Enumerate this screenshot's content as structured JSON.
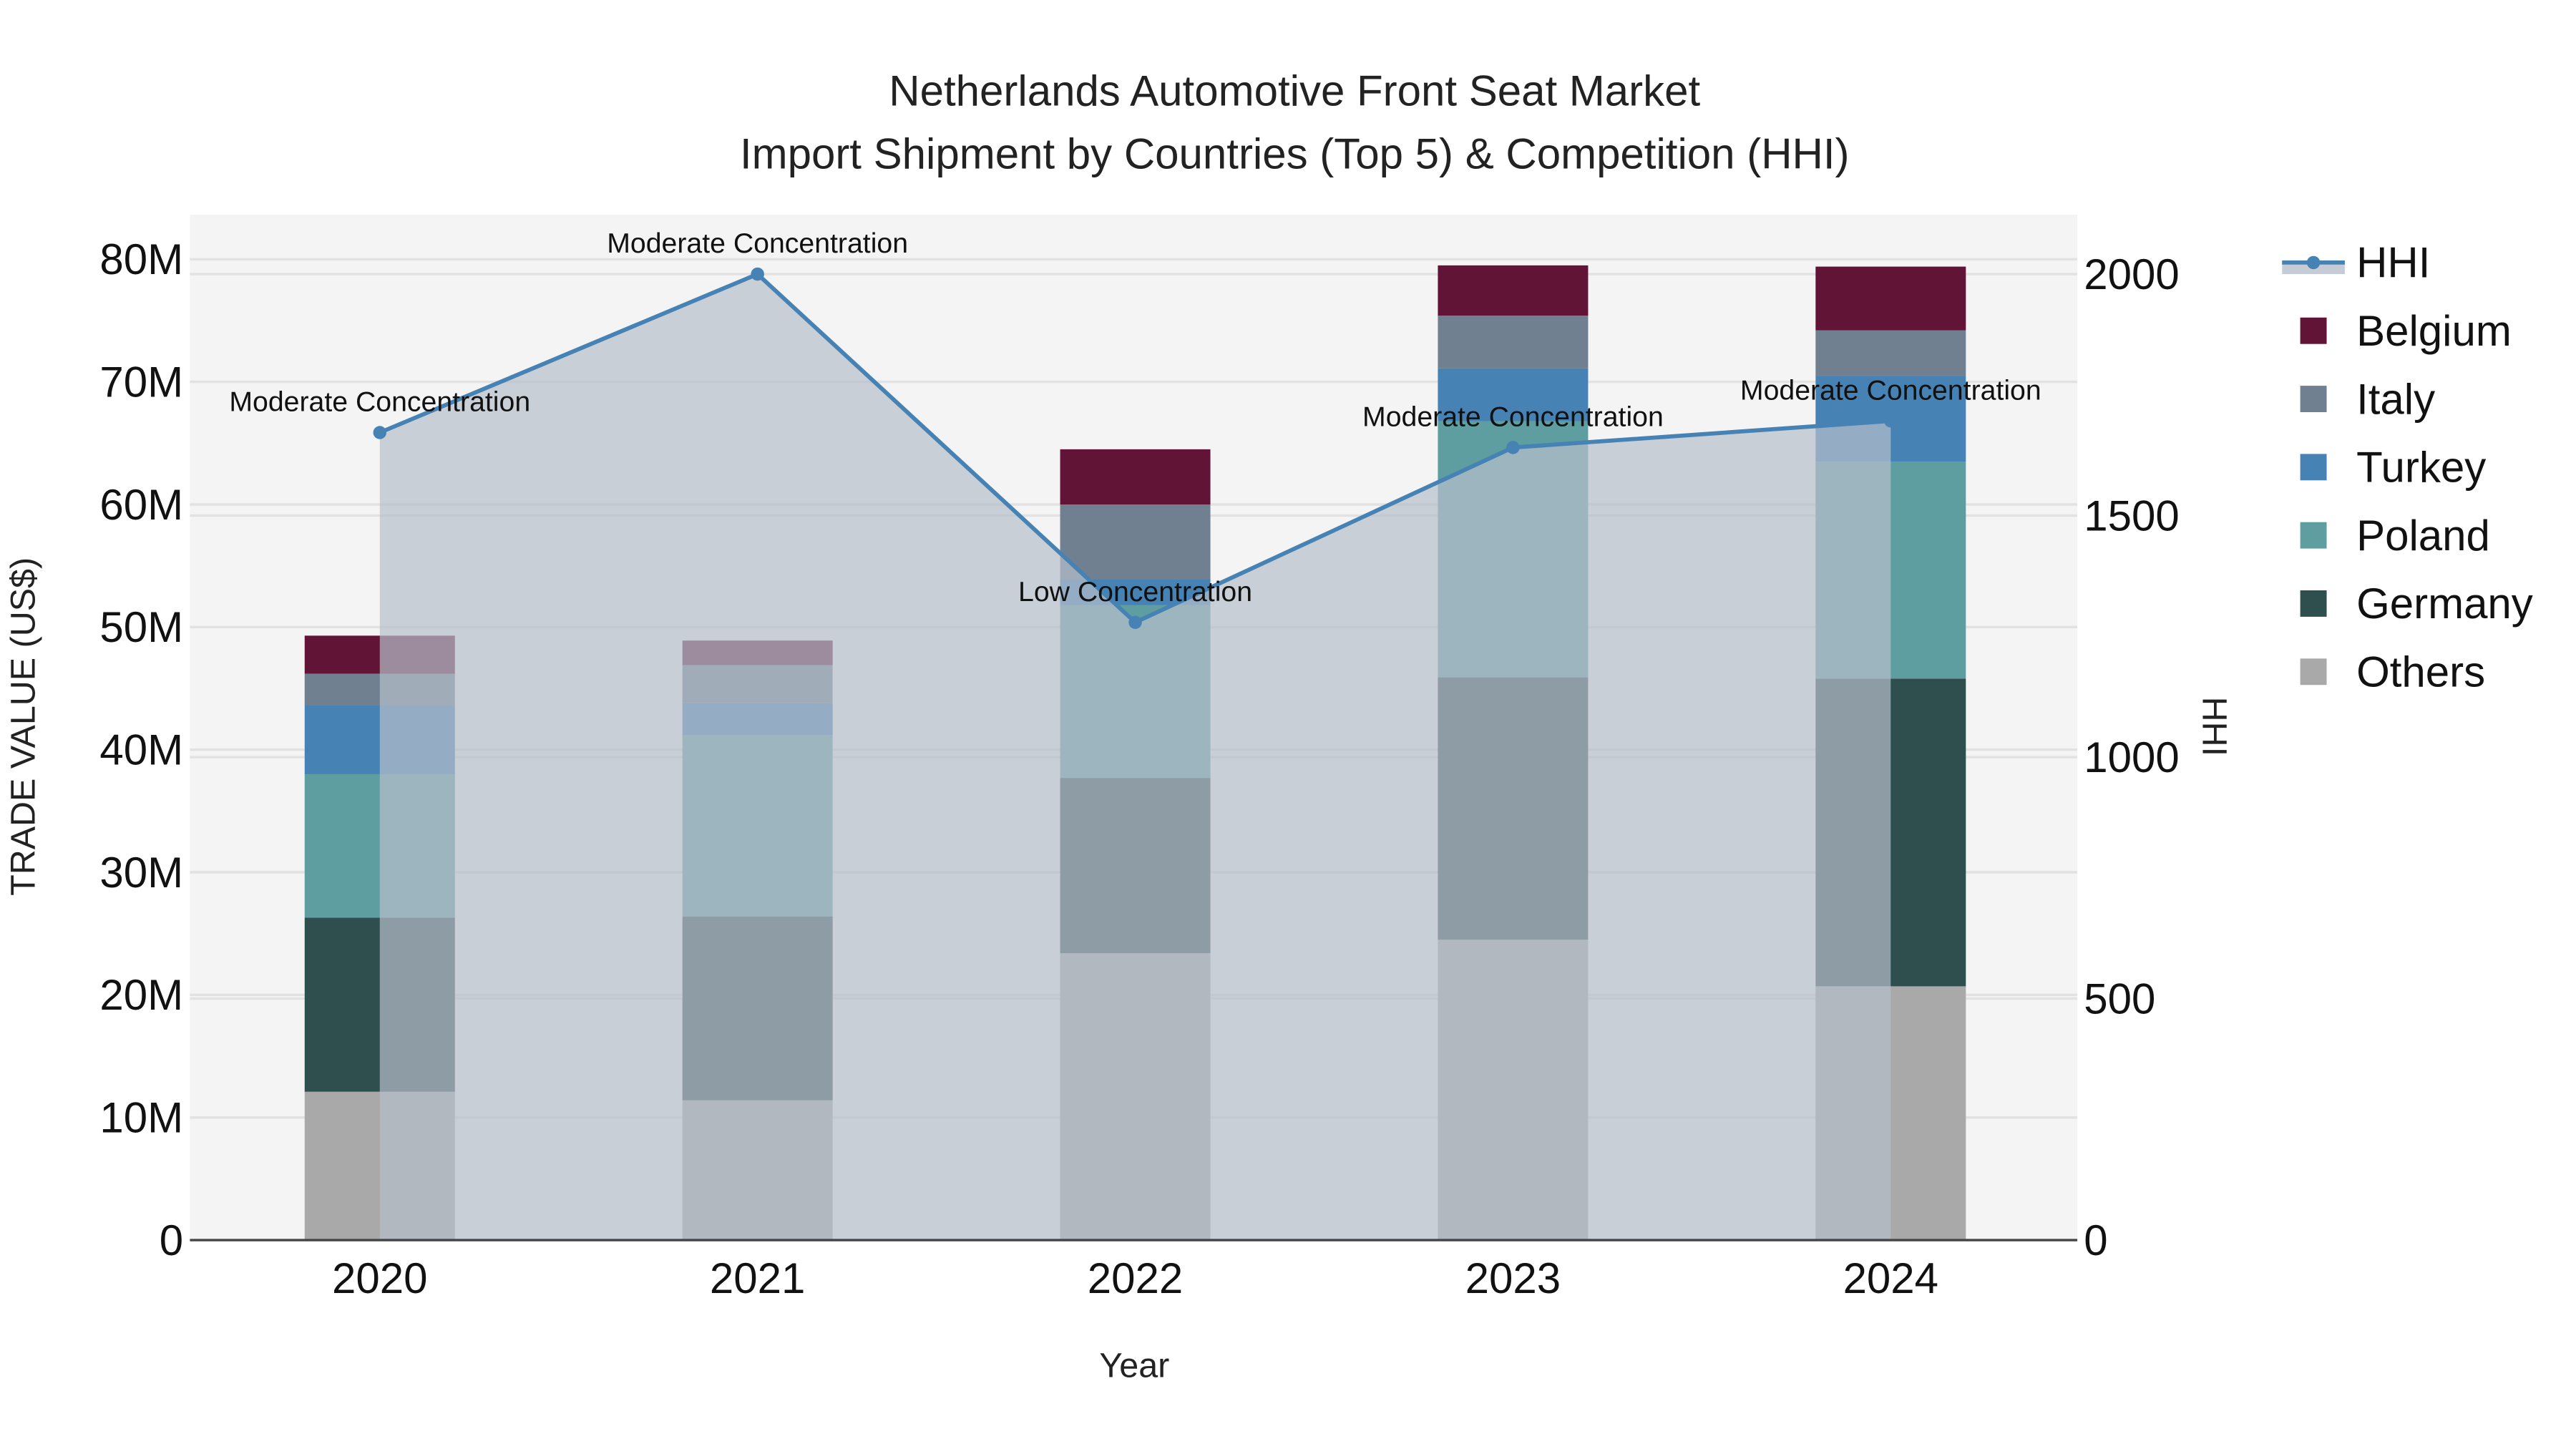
{
  "chart_data": {
    "type": "bar",
    "title_line1": "Netherlands Automotive Front Seat Market",
    "title_line2": "Import Shipment by Countries (Top 5) & Competition (HHI)",
    "xlabel": "Year",
    "ylabel": "TRADE VALUE (US$)",
    "y2label": "HHI",
    "categories": [
      "2020",
      "2021",
      "2022",
      "2023",
      "2024"
    ],
    "ylim": [
      0,
      84
    ],
    "y_unit": "M",
    "yticks": [
      0,
      10,
      20,
      30,
      40,
      50,
      60,
      70,
      80
    ],
    "ytick_labels": [
      "0",
      "10M",
      "20M",
      "30M",
      "40M",
      "50M",
      "60M",
      "70M",
      "80M"
    ],
    "y2lim": [
      0,
      2100
    ],
    "y2ticks": [
      0,
      500,
      1000,
      1500,
      2000
    ],
    "y2tick_labels": [
      "0",
      "500",
      "1000",
      "1500",
      "2000"
    ],
    "stack_order": [
      "Others",
      "Germany",
      "Poland",
      "Turkey",
      "Italy",
      "Belgium"
    ],
    "series": [
      {
        "name": "Others",
        "color": "#a9a9a9",
        "values": [
          12.1,
          11.4,
          23.4,
          24.5,
          20.7
        ]
      },
      {
        "name": "Germany",
        "color": "#2f4f4f",
        "values": [
          14.2,
          15.0,
          14.3,
          21.4,
          25.1
        ]
      },
      {
        "name": "Poland",
        "color": "#5f9ea0",
        "values": [
          11.7,
          14.8,
          14.1,
          20.9,
          17.7
        ]
      },
      {
        "name": "Turkey",
        "color": "#4682b4",
        "values": [
          5.6,
          2.6,
          2.1,
          4.3,
          7.0
        ]
      },
      {
        "name": "Italy",
        "color": "#708090",
        "values": [
          2.6,
          3.1,
          6.1,
          4.3,
          3.7
        ]
      },
      {
        "name": "Belgium",
        "color": "#611435",
        "values": [
          3.1,
          2.0,
          4.5,
          4.1,
          5.2
        ]
      }
    ],
    "hhi": {
      "name": "HHI",
      "color": "#4682b4",
      "values": [
        1672,
        2000,
        1279,
        1641,
        1696
      ],
      "annotations": [
        "Moderate Concentration",
        "Moderate Concentration",
        "Low Concentration",
        "Moderate Concentration",
        "Moderate Concentration"
      ]
    },
    "legend": [
      "HHI",
      "Belgium",
      "Italy",
      "Turkey",
      "Poland",
      "Germany",
      "Others"
    ],
    "legend_placement": "right",
    "grid": true
  }
}
